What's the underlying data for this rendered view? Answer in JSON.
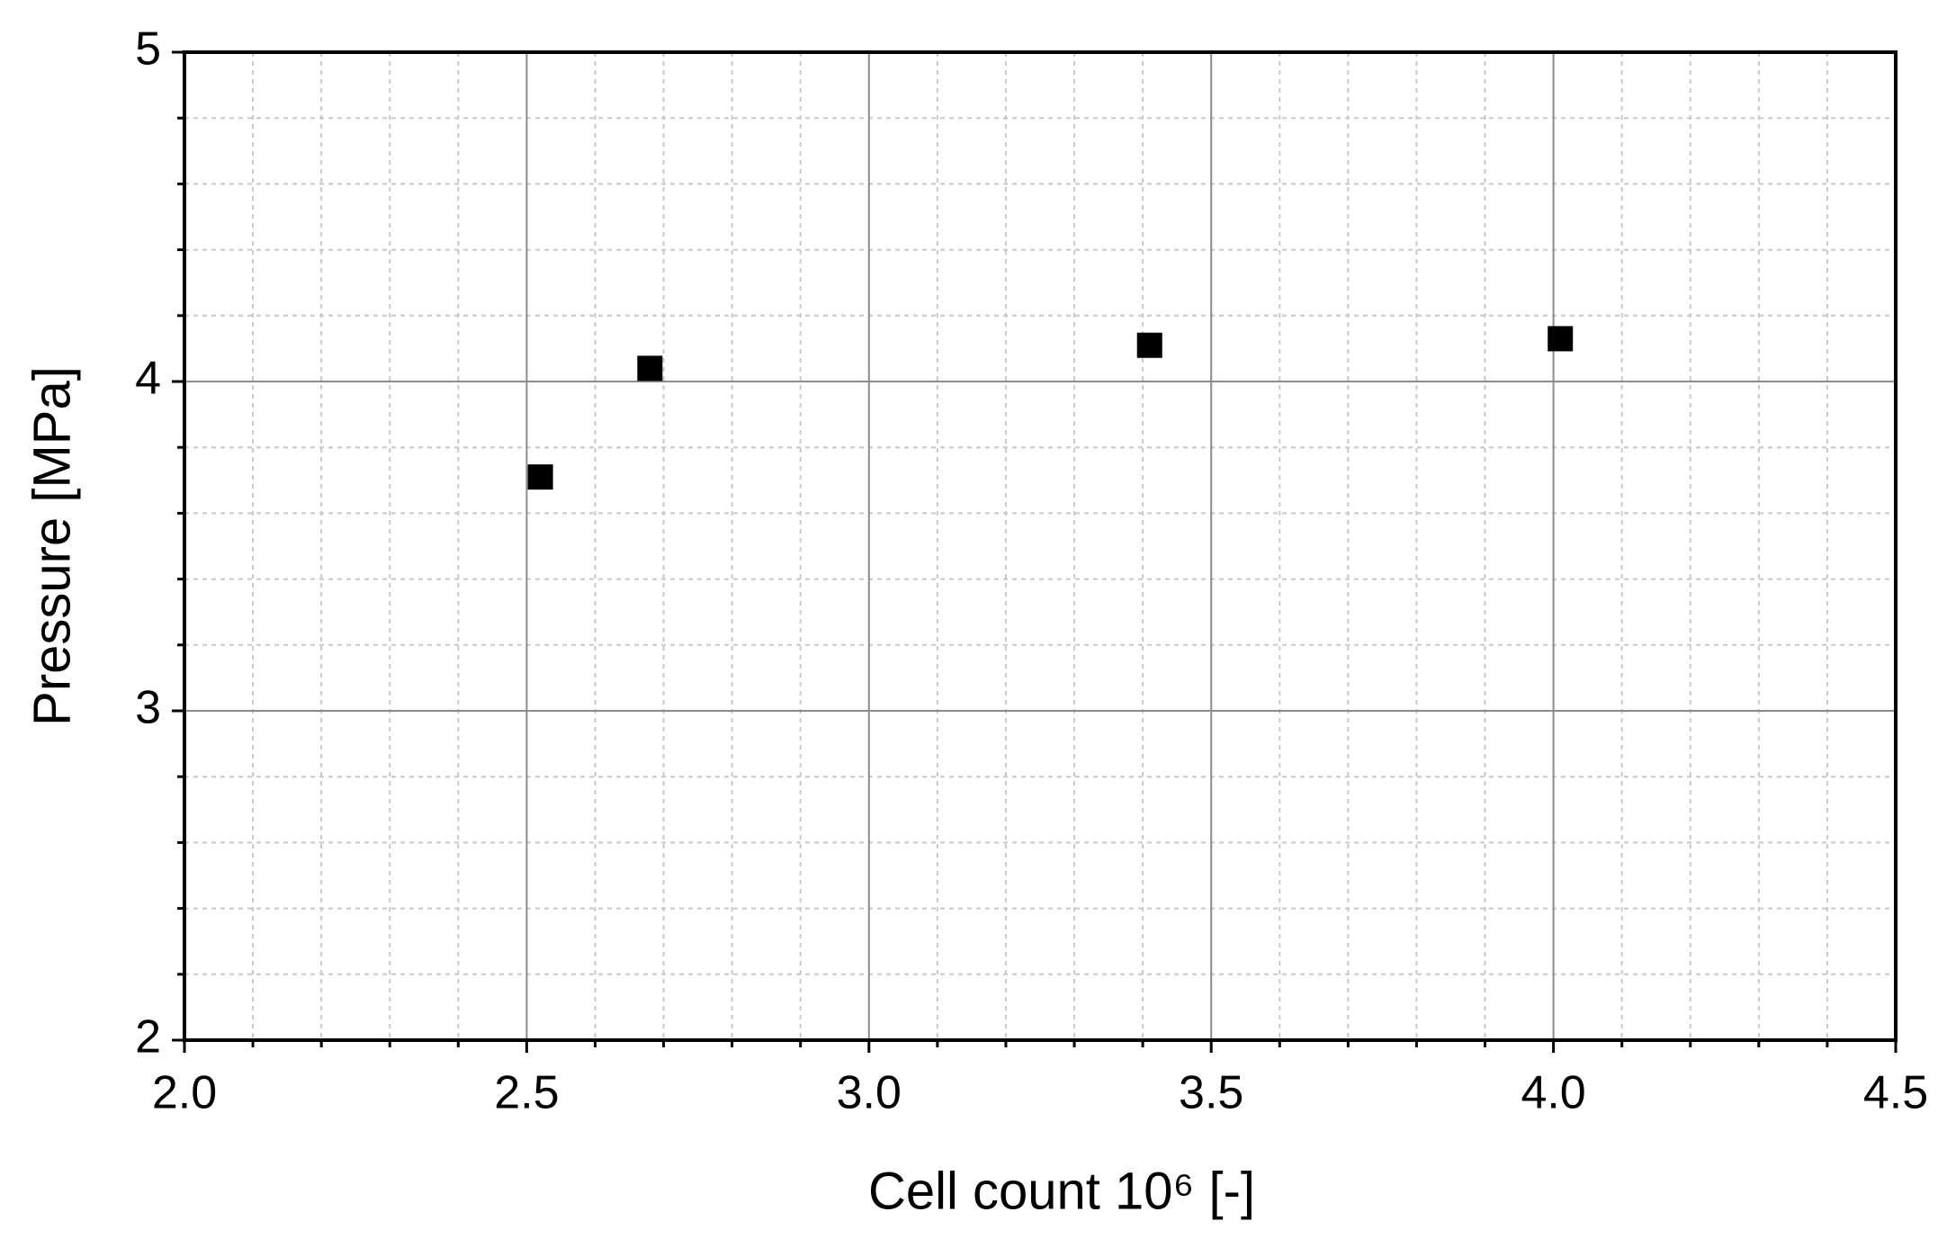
{
  "chart_data": {
    "type": "scatter",
    "xlabel": "Cell count 10⁶ [-]",
    "ylabel": "Pressure [MPa]",
    "x": [
      2.52,
      2.68,
      3.41,
      4.01
    ],
    "values": [
      3.71,
      4.04,
      4.11,
      4.13
    ],
    "color": "#000000",
    "xlim": [
      2.0,
      4.5
    ],
    "ylim": [
      2,
      5
    ],
    "xticks": [
      {
        "value": 2,
        "label": "2.0"
      },
      2.5,
      {
        "value": 3,
        "label": "3.0"
      },
      3.5,
      {
        "value": 4,
        "label": "4.0"
      },
      4.5
    ],
    "yticks": [
      2,
      3,
      4,
      5
    ],
    "minor_xticks": [
      2.1,
      2.2,
      2.3,
      2.4,
      2.6,
      2.7,
      2.8,
      2.9,
      3.1,
      3.2,
      3.3,
      3.4,
      3.6,
      3.7,
      3.8,
      3.9,
      4.1,
      4.2,
      4.3,
      4.4
    ],
    "minor_yticks": [
      2.2,
      2.4,
      2.6,
      2.8,
      3.2,
      3.4,
      3.6,
      3.8,
      4.2,
      4.4,
      4.6,
      4.8
    ],
    "grid": true
  }
}
